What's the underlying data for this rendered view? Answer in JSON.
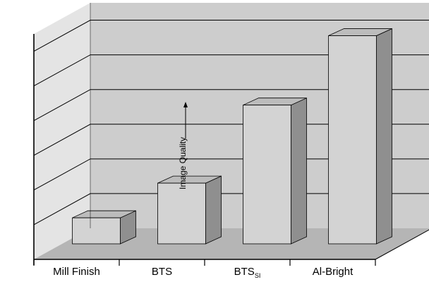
{
  "chart_data": {
    "type": "bar",
    "categories": [
      "Mill Finish",
      "BTS",
      "BTS",
      "Al-Bright"
    ],
    "category_subscripts": [
      "",
      "",
      "SI",
      ""
    ],
    "values": [
      0.75,
      1.75,
      4.0,
      6.0
    ],
    "ylabel": "Image Quality",
    "ylim": [
      0,
      6.5
    ],
    "grid": true,
    "style": "3d"
  },
  "colors": {
    "back_wall": "#cdcdcd",
    "side_wall": "#e4e4e4",
    "floor": "#b5b5b5",
    "bar_front": "#d3d3d3",
    "bar_side": "#8f8f8f",
    "bar_top": "#bcbcbc",
    "grid": "#000000"
  }
}
